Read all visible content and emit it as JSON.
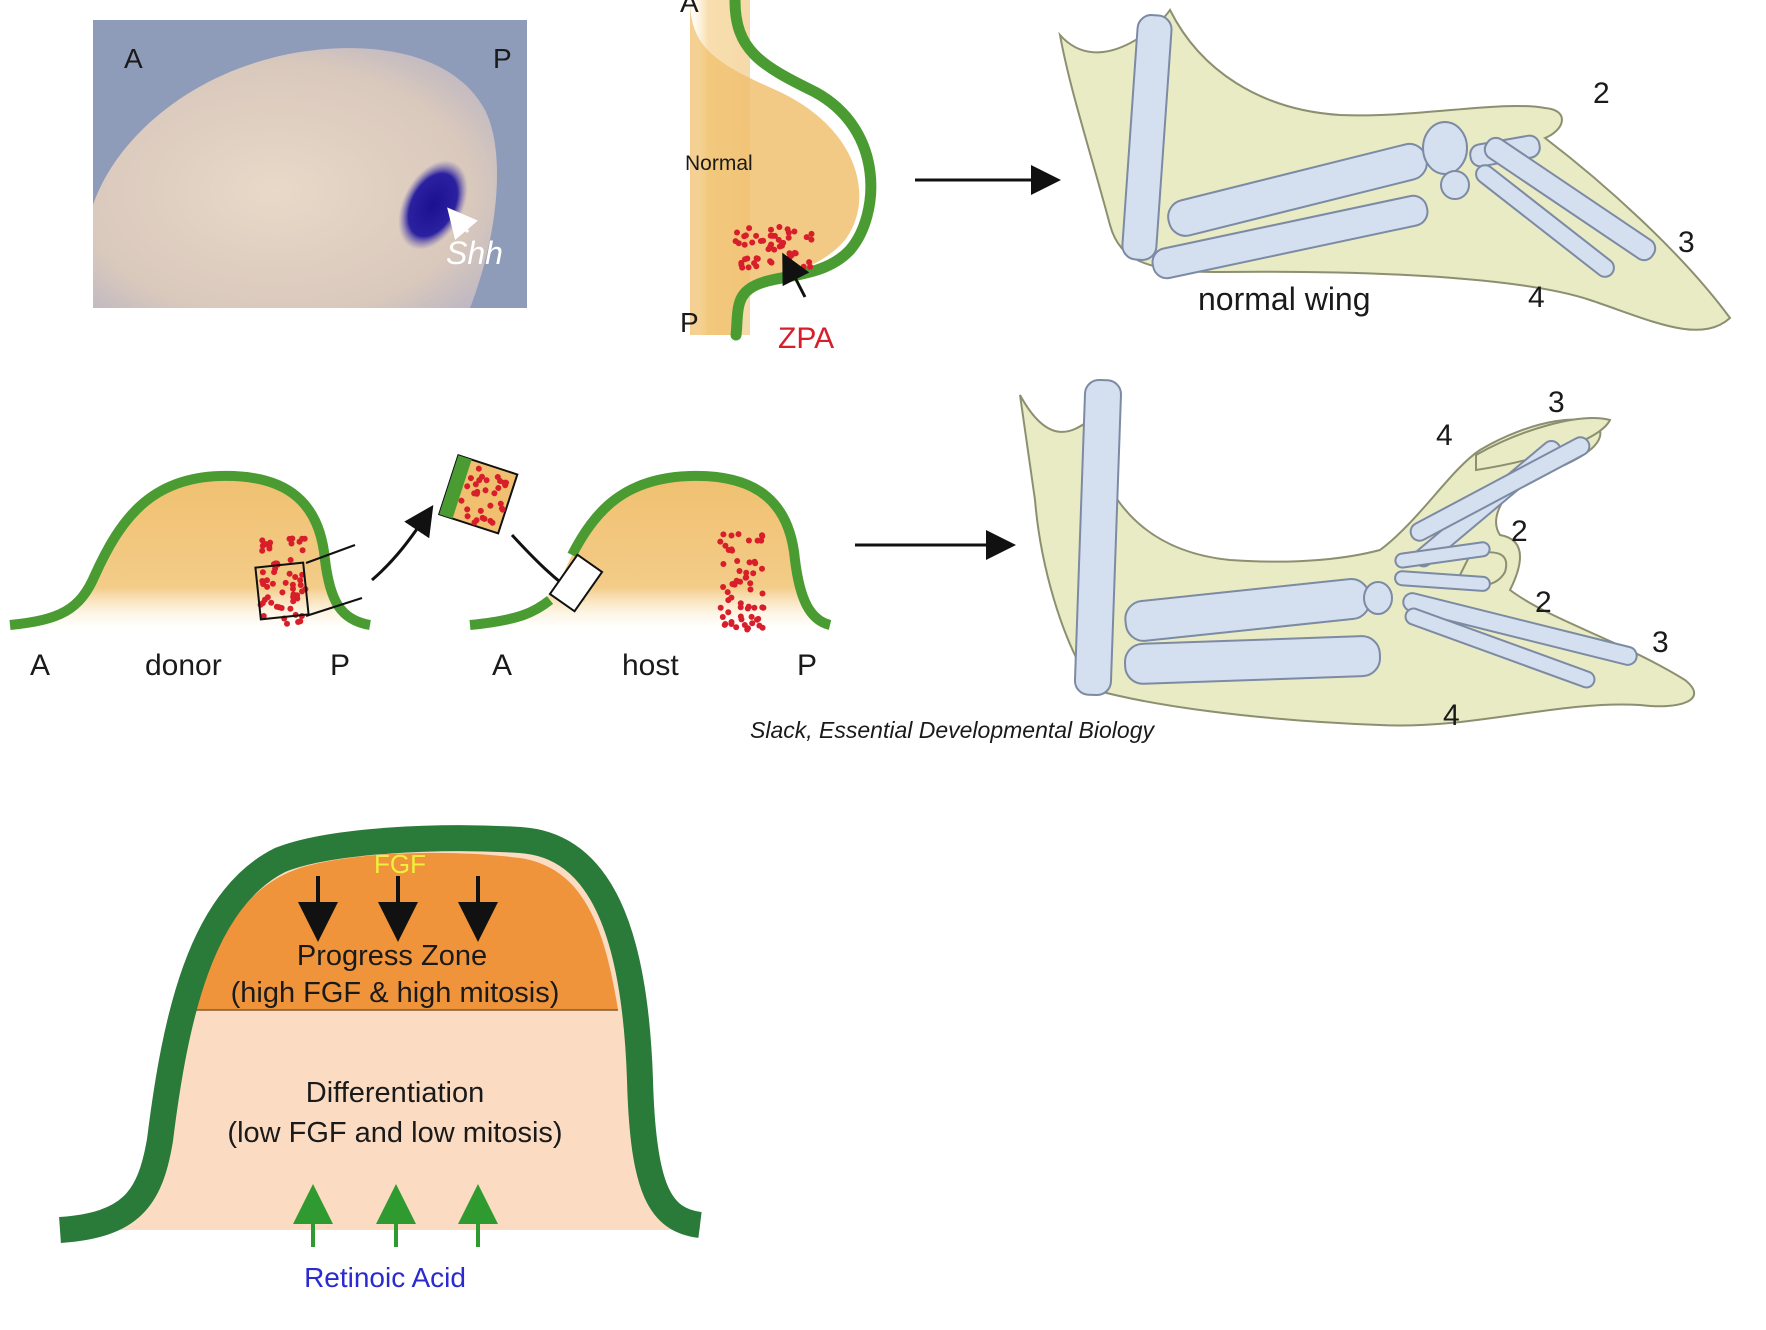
{
  "photo": {
    "label_anterior": "A",
    "label_posterior": "P",
    "gene_label": "Shh"
  },
  "normal_bud": {
    "label_anterior": "A",
    "label_posterior": "P",
    "label_normal": "Normal",
    "zpa_label": "ZPA"
  },
  "normal_wing": {
    "caption": "normal wing",
    "digits": [
      "2",
      "3",
      "4"
    ]
  },
  "graft": {
    "donor_anterior": "A",
    "donor_label": "donor",
    "donor_posterior": "P",
    "host_anterior": "A",
    "host_label": "host",
    "host_posterior": "P"
  },
  "duplicated_wing": {
    "digits": [
      "4",
      "3",
      "2",
      "2",
      "3",
      "4"
    ]
  },
  "citation": "Slack, Essential Developmental Biology",
  "progress_zone_diagram": {
    "fgf_label": "FGF",
    "progress_zone_title": "Progress Zone",
    "progress_zone_detail": "(high FGF & high mitosis)",
    "differentiation_title": "Differentiation",
    "differentiation_detail": "(low FGF and low mitosis)",
    "retinoic_acid_label": "Retinoic Acid"
  },
  "colors": {
    "ectoderm_green": "#4a9c32",
    "mesenchyme_orange": "#f0c070",
    "zpa_red": "#d81e2a",
    "bone_blue": "#d4dff0",
    "wing_tissue": "#e8ebc4",
    "pz_dark_green": "#2a7a3a",
    "pz_orange": "#f0943c",
    "pz_peach": "#fbdcc2",
    "fgf_yellow": "#f0f03c",
    "ra_blue": "#2a2ad0",
    "ra_arrow_green": "#2f9a2f"
  }
}
